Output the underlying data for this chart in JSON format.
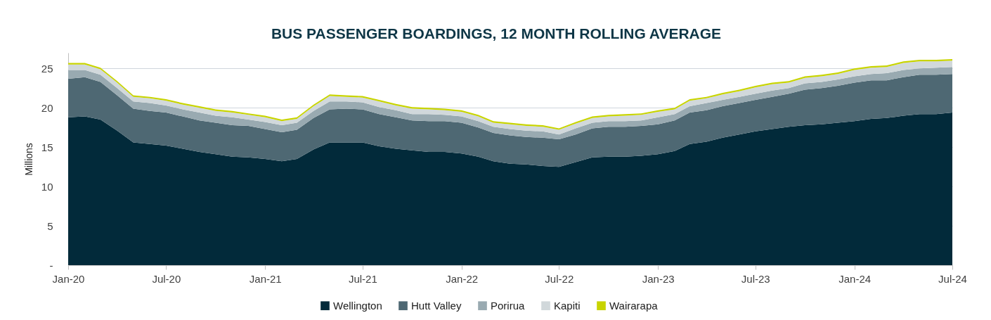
{
  "chart_data": {
    "type": "area",
    "stacked": true,
    "title": "BUS PASSENGER BOARDINGS, 12 MONTH ROLLING AVERAGE",
    "ylabel": "Millions",
    "x": [
      "2020-01",
      "2020-02",
      "2020-03",
      "2020-04",
      "2020-05",
      "2020-06",
      "2020-07",
      "2020-08",
      "2020-09",
      "2020-10",
      "2020-11",
      "2020-12",
      "2021-01",
      "2021-02",
      "2021-03",
      "2021-04",
      "2021-05",
      "2021-06",
      "2021-07",
      "2021-08",
      "2021-09",
      "2021-10",
      "2021-11",
      "2021-12",
      "2022-01",
      "2022-02",
      "2022-03",
      "2022-04",
      "2022-05",
      "2022-06",
      "2022-07",
      "2022-08",
      "2022-09",
      "2022-10",
      "2022-11",
      "2022-12",
      "2023-01",
      "2023-02",
      "2023-03",
      "2023-04",
      "2023-05",
      "2023-06",
      "2023-07",
      "2023-08",
      "2023-09",
      "2023-10",
      "2023-11",
      "2023-12",
      "2024-01",
      "2024-02",
      "2024-03",
      "2024-04",
      "2024-05",
      "2024-06",
      "2024-07"
    ],
    "xlim": [
      "2020-01",
      "2024-07"
    ],
    "xticks": [
      {
        "value": "2020-01",
        "label": "Jan-20"
      },
      {
        "value": "2020-07",
        "label": "Jul-20"
      },
      {
        "value": "2021-01",
        "label": "Jan-21"
      },
      {
        "value": "2021-07",
        "label": "Jul-21"
      },
      {
        "value": "2022-01",
        "label": "Jan-22"
      },
      {
        "value": "2022-07",
        "label": "Jul-22"
      },
      {
        "value": "2023-01",
        "label": "Jan-23"
      },
      {
        "value": "2023-07",
        "label": "Jul-23"
      },
      {
        "value": "2024-01",
        "label": "Jan-24"
      },
      {
        "value": "2024-07",
        "label": "Jul-24"
      }
    ],
    "ylim": [
      0,
      27
    ],
    "yticks": [
      {
        "value": 0,
        "label": "-"
      },
      5,
      10,
      15,
      20,
      25
    ],
    "grid": "y",
    "legend": "bottom",
    "series": [
      {
        "name": "Wellington",
        "color": "#022a3a",
        "values": [
          18.8,
          18.9,
          18.5,
          17.1,
          15.6,
          15.4,
          15.2,
          14.8,
          14.4,
          14.1,
          13.8,
          13.7,
          13.5,
          13.2,
          13.5,
          14.7,
          15.6,
          15.6,
          15.6,
          15.1,
          14.8,
          14.6,
          14.4,
          14.4,
          14.2,
          13.8,
          13.2,
          12.9,
          12.8,
          12.6,
          12.5,
          13.1,
          13.7,
          13.8,
          13.8,
          13.9,
          14.1,
          14.5,
          15.4,
          15.7,
          16.2,
          16.6,
          17.0,
          17.3,
          17.6,
          17.8,
          17.9,
          18.1,
          18.3,
          18.6,
          18.7,
          19.0,
          19.2,
          19.2,
          19.4
        ]
      },
      {
        "name": "Hutt Valley",
        "color": "#4e6873",
        "values": [
          4.9,
          5.0,
          4.8,
          4.5,
          4.3,
          4.2,
          4.2,
          4.1,
          4.0,
          4.0,
          4.0,
          4.0,
          3.8,
          3.7,
          3.7,
          4.0,
          4.2,
          4.3,
          4.2,
          4.1,
          4.0,
          3.8,
          3.9,
          3.9,
          3.9,
          3.7,
          3.6,
          3.6,
          3.5,
          3.6,
          3.5,
          3.5,
          3.7,
          3.8,
          3.8,
          3.8,
          3.8,
          3.9,
          4.0,
          4.0,
          4.0,
          4.0,
          4.0,
          4.1,
          4.2,
          4.5,
          4.6,
          4.7,
          4.9,
          4.9,
          4.8,
          4.9,
          5.0,
          5.0,
          4.9
        ]
      },
      {
        "name": "Porirua",
        "color": "#99aab1",
        "values": [
          1.1,
          0.9,
          0.9,
          0.9,
          0.9,
          1.0,
          0.9,
          0.9,
          1.0,
          0.9,
          1.0,
          0.8,
          0.9,
          0.9,
          0.9,
          0.9,
          1.0,
          0.9,
          0.9,
          0.9,
          0.9,
          0.8,
          0.9,
          0.8,
          0.8,
          0.8,
          0.8,
          0.8,
          0.8,
          0.8,
          0.6,
          0.8,
          0.7,
          0.7,
          0.7,
          0.7,
          0.9,
          0.8,
          0.8,
          0.9,
          0.8,
          0.8,
          0.8,
          0.8,
          0.7,
          0.8,
          0.8,
          0.8,
          0.8,
          0.8,
          0.9,
          0.9,
          0.8,
          0.9,
          0.9
        ]
      },
      {
        "name": "Kapiti",
        "color": "#d1d8db",
        "values": [
          0.7,
          0.7,
          0.7,
          0.7,
          0.6,
          0.6,
          0.6,
          0.6,
          0.6,
          0.6,
          0.6,
          0.6,
          0.6,
          0.5,
          0.5,
          0.6,
          0.7,
          0.6,
          0.6,
          0.7,
          0.6,
          0.7,
          0.6,
          0.6,
          0.6,
          0.6,
          0.5,
          0.6,
          0.6,
          0.6,
          0.6,
          0.6,
          0.6,
          0.6,
          0.7,
          0.7,
          0.7,
          0.6,
          0.7,
          0.6,
          0.7,
          0.7,
          0.8,
          0.8,
          0.7,
          0.7,
          0.7,
          0.7,
          0.8,
          0.8,
          0.8,
          0.9,
          0.9,
          0.8,
          0.8
        ]
      },
      {
        "name": "Wairarapa",
        "color": "#c8d400",
        "values": [
          0.2,
          0.2,
          0.2,
          0.2,
          0.2,
          0.2,
          0.2,
          0.2,
          0.2,
          0.2,
          0.2,
          0.2,
          0.2,
          0.2,
          0.2,
          0.2,
          0.2,
          0.2,
          0.2,
          0.2,
          0.2,
          0.2,
          0.2,
          0.2,
          0.2,
          0.2,
          0.2,
          0.2,
          0.2,
          0.2,
          0.2,
          0.2,
          0.2,
          0.2,
          0.2,
          0.2,
          0.2,
          0.2,
          0.2,
          0.2,
          0.2,
          0.2,
          0.2,
          0.2,
          0.2,
          0.2,
          0.2,
          0.2,
          0.2,
          0.2,
          0.2,
          0.2,
          0.2,
          0.2,
          0.2
        ]
      }
    ]
  }
}
